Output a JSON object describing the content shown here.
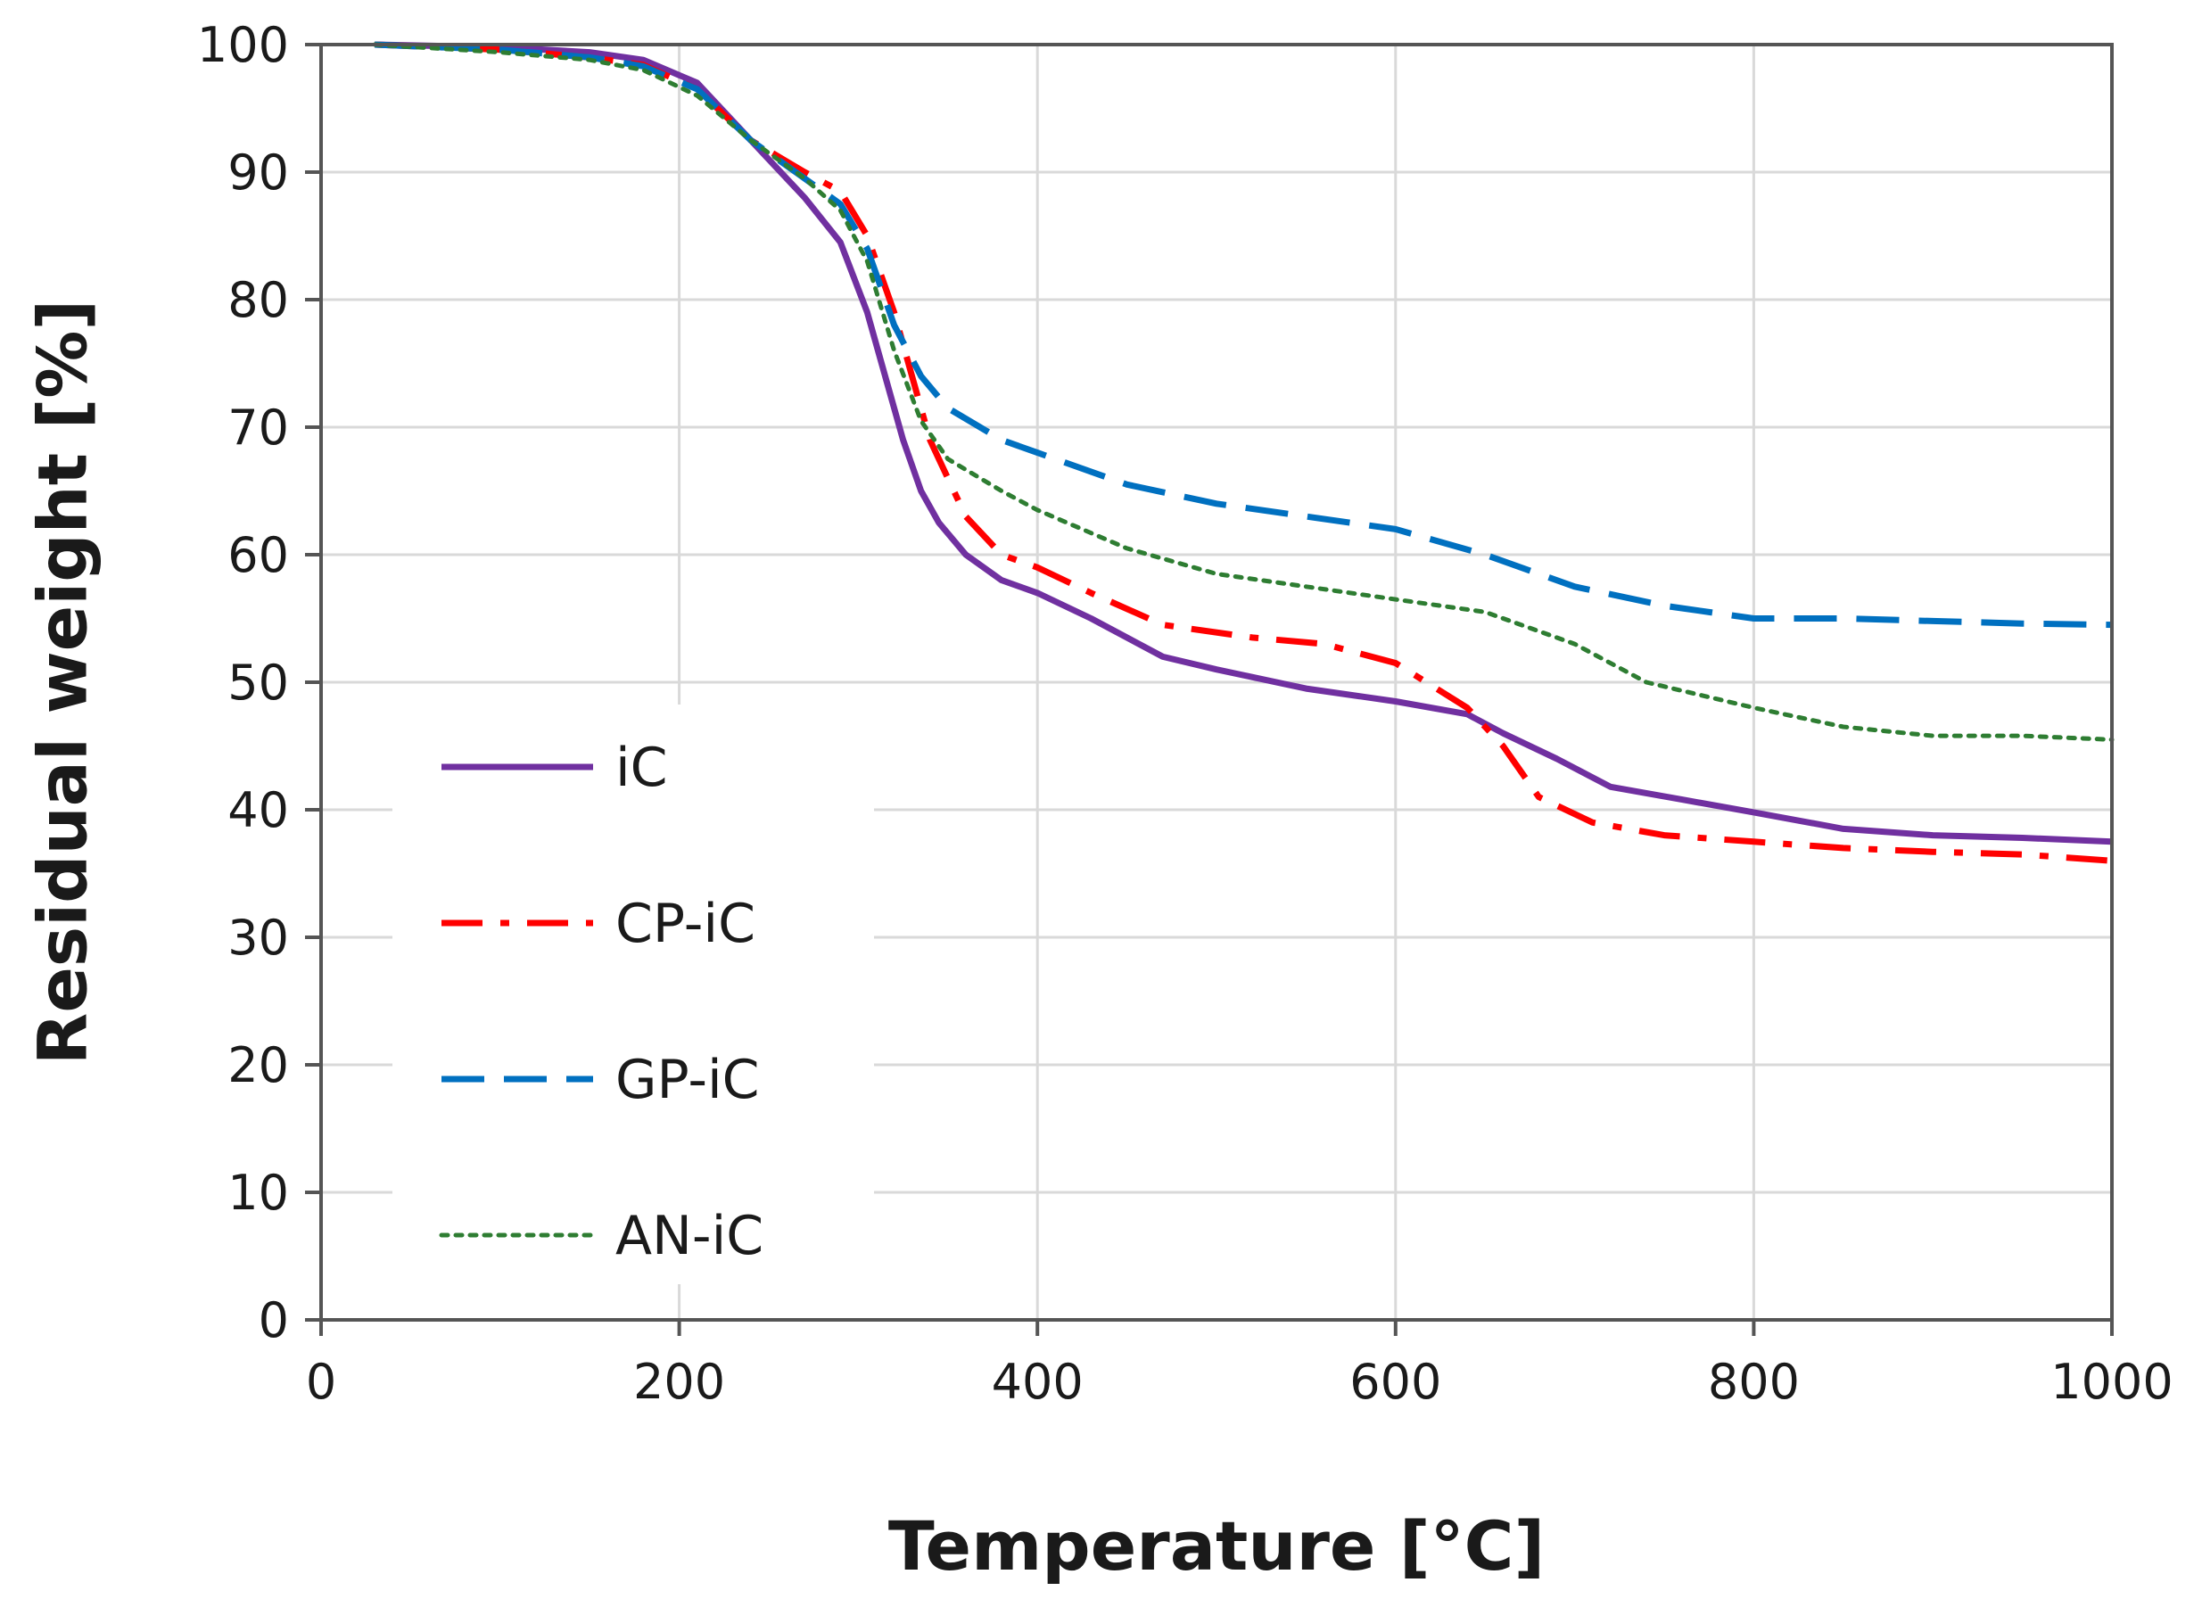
{
  "chart_data": {
    "type": "line",
    "xlabel": "Temperature [°C]",
    "ylabel": "Residual weight [%]",
    "xlim": [
      0,
      1000
    ],
    "ylim": [
      0,
      100
    ],
    "xticks": [
      0,
      200,
      400,
      600,
      800,
      1000
    ],
    "yticks": [
      0,
      10,
      20,
      30,
      40,
      50,
      60,
      70,
      80,
      90,
      100
    ],
    "grid": true,
    "legend_position": "lower-left",
    "series": [
      {
        "name": "iC",
        "color": "#7030a0",
        "dash": "solid",
        "x": [
          30,
          100,
          150,
          180,
          210,
          240,
          270,
          290,
          305,
          315,
          325,
          335,
          345,
          360,
          380,
          400,
          430,
          470,
          500,
          550,
          600,
          640,
          660,
          690,
          720,
          760,
          800,
          850,
          900,
          950,
          1000
        ],
        "y": [
          100,
          99.8,
          99.4,
          98.8,
          97,
          92.5,
          88,
          84.5,
          79,
          74,
          69,
          65,
          62.5,
          60,
          58,
          57,
          55,
          52,
          51,
          49.5,
          48.5,
          47.5,
          46,
          44,
          41.8,
          40.8,
          39.8,
          38.5,
          38,
          37.8,
          37.5
        ]
      },
      {
        "name": "CP-iC",
        "color": "#ff0000",
        "dash": "dashdot",
        "x": [
          30,
          100,
          150,
          180,
          210,
          240,
          270,
          290,
          305,
          320,
          330,
          340,
          350,
          360,
          380,
          400,
          430,
          470,
          520,
          560,
          600,
          640,
          660,
          680,
          710,
          750,
          800,
          850,
          900,
          950,
          1000
        ],
        "y": [
          100,
          99.6,
          99,
          98.4,
          96.5,
          92.5,
          90,
          88.5,
          85,
          79,
          74,
          69,
          66,
          63,
          60,
          59,
          57,
          54.5,
          53.5,
          53,
          51.5,
          48,
          45,
          41,
          39,
          38,
          37.5,
          37,
          36.7,
          36.5,
          36
        ]
      },
      {
        "name": "GP-iC",
        "color": "#0070c0",
        "dash": "dashed",
        "x": [
          30,
          100,
          150,
          180,
          210,
          240,
          270,
          290,
          305,
          320,
          335,
          350,
          380,
          400,
          450,
          500,
          550,
          600,
          650,
          700,
          750,
          800,
          850,
          900,
          950,
          1000
        ],
        "y": [
          100,
          99.6,
          99,
          98.3,
          96.5,
          92.5,
          89.5,
          87.5,
          84,
          78,
          74,
          71.5,
          69,
          68,
          65.5,
          64,
          63,
          62,
          60,
          57.5,
          56,
          55,
          55,
          54.8,
          54.6,
          54.5
        ]
      },
      {
        "name": "AN-iC",
        "color": "#2e7d32",
        "dash": "dotted",
        "x": [
          30,
          100,
          150,
          180,
          210,
          240,
          270,
          290,
          305,
          320,
          335,
          350,
          380,
          400,
          450,
          500,
          550,
          600,
          650,
          700,
          740,
          800,
          850,
          900,
          950,
          1000
        ],
        "y": [
          100,
          99.4,
          98.8,
          98,
          96,
          92.5,
          89.5,
          87,
          83,
          76,
          70.5,
          67.5,
          65,
          63.5,
          60.5,
          58.5,
          57.5,
          56.5,
          55.5,
          53,
          50,
          48,
          46.5,
          45.8,
          45.8,
          45.5
        ]
      }
    ]
  }
}
